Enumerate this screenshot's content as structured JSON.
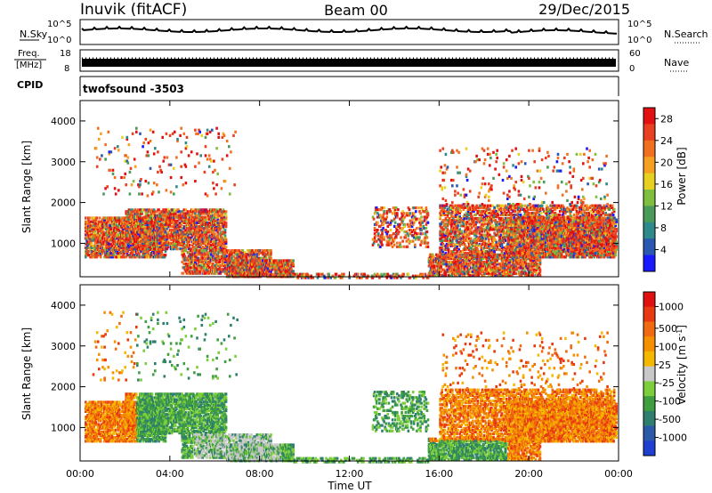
{
  "header": {
    "station": "Inuvik (fitACF)",
    "beam": "Beam 00",
    "date": "29/Dec/2015"
  },
  "sky_panel": {
    "left_label": "N.Sky",
    "left_ticks": [
      "10^5",
      "10^0"
    ],
    "right_label": "N.Search",
    "right_ticks": [
      "10^5",
      "10^0"
    ]
  },
  "freq_panel": {
    "left_label_1": "Freq.",
    "left_label_2": "[MHz]",
    "left_ticks": [
      "18",
      "8"
    ],
    "right_label": "Nave",
    "right_ticks": [
      "60",
      "0"
    ]
  },
  "cpid_panel": {
    "label": "CPID",
    "program": "twofsound -3503"
  },
  "chart_data": [
    {
      "type": "heatmap",
      "name": "power",
      "ylabel": "Slant Range [km]",
      "xlabel": "Time UT",
      "x_ticks": [
        "00:00",
        "04:00",
        "08:00",
        "12:00",
        "16:00",
        "20:00",
        "00:00"
      ],
      "y_ticks": [
        1000,
        2000,
        3000,
        4000
      ],
      "xlim_hours": [
        0,
        24
      ],
      "ylim_km": [
        180,
        4500
      ],
      "colorbar": {
        "label": "Power [dB]",
        "ticks": [
          4,
          8,
          12,
          16,
          20,
          24,
          28
        ],
        "range": [
          0,
          30
        ],
        "colors": [
          "#1a1aff",
          "#2a57b0",
          "#2e8a8a",
          "#4a9a5a",
          "#7fbf3f",
          "#e8d020",
          "#f5a020",
          "#f07020",
          "#e84020",
          "#e21010"
        ]
      }
    },
    {
      "type": "heatmap",
      "name": "velocity",
      "ylabel": "Slant Range [km]",
      "xlabel": "Time UT",
      "x_ticks": [
        "00:00",
        "04:00",
        "08:00",
        "12:00",
        "16:00",
        "20:00",
        "00:00"
      ],
      "y_ticks": [
        1000,
        2000,
        3000,
        4000
      ],
      "xlim_hours": [
        0,
        24
      ],
      "ylim_km": [
        180,
        4500
      ],
      "colorbar": {
        "label": "Velocity [m s^-1]",
        "ticks": [
          "1000",
          "500",
          "100",
          "25",
          "-25",
          "-100",
          "-500",
          "-1000"
        ],
        "colors": [
          "#1f3fd0",
          "#2a5aa8",
          "#2f7f6f",
          "#3f9f3f",
          "#7ccf3a",
          "#c8c8c8",
          "#f5b800",
          "#f59000",
          "#ef6a10",
          "#e83a10",
          "#e01010"
        ]
      }
    }
  ]
}
